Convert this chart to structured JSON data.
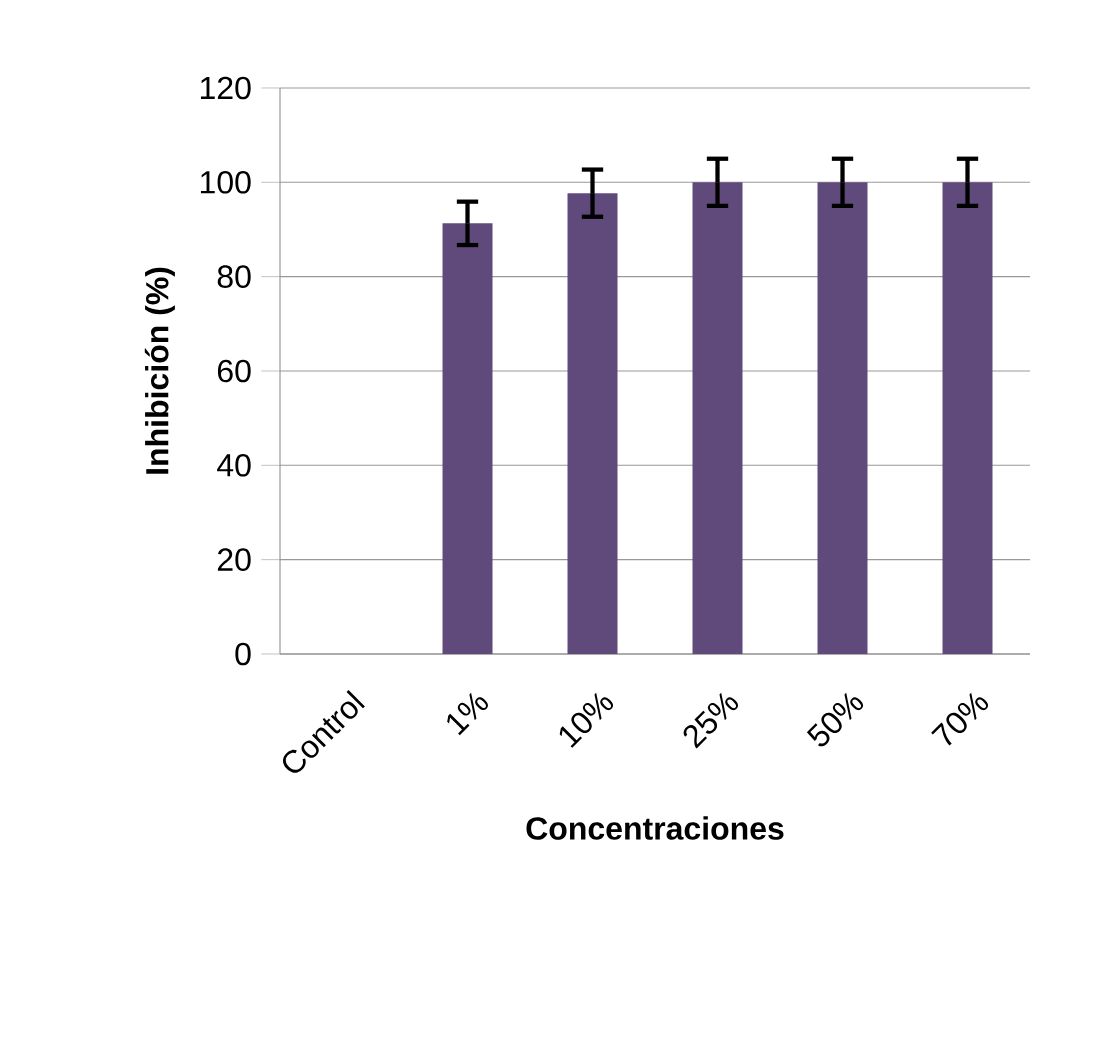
{
  "chart_data": {
    "type": "bar",
    "xlabel": "Concentraciones",
    "ylabel": "Inhibición (%)",
    "categories": [
      "Control",
      "1%",
      "10%",
      "25%",
      "50%",
      "70%"
    ],
    "values": [
      0,
      91.3,
      97.7,
      100,
      100,
      100
    ],
    "errors": [
      null,
      4.6,
      5,
      5,
      5,
      5
    ],
    "color": "#604a7b",
    "ylim": [
      0,
      120
    ],
    "yticks": [
      0,
      20,
      40,
      60,
      80,
      100,
      120
    ],
    "grid": "y"
  }
}
